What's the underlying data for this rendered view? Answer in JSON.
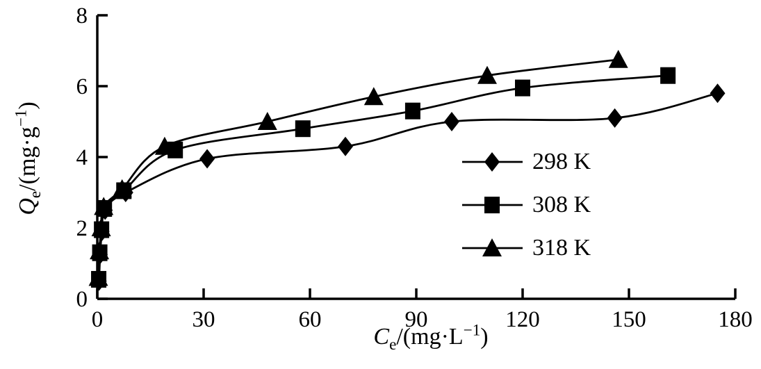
{
  "colors": {
    "foreground": "#000000",
    "background": "#ffffff"
  },
  "chart_data": {
    "type": "line",
    "title": "",
    "grid": false,
    "legend_position": "center-right",
    "xlim": [
      0,
      180
    ],
    "ylim": [
      0,
      8
    ],
    "x_ticks": [
      0,
      30,
      60,
      90,
      120,
      150,
      180
    ],
    "y_ticks": [
      0,
      2,
      4,
      6,
      8
    ],
    "xlabel": {
      "symbol": "C",
      "subscript": "e",
      "unit_prefix": "/(mg·L",
      "superscript": "−1",
      "unit_suffix": ")"
    },
    "ylabel": {
      "symbol": "Q",
      "subscript": "e",
      "unit_prefix": "/(mg·g",
      "superscript": "−1",
      "unit_suffix": ")"
    },
    "series": [
      {
        "name": "298 K",
        "marker": "diamond",
        "color": "#000000",
        "points": [
          [
            0.5,
            0.5
          ],
          [
            0.8,
            1.25
          ],
          [
            1.3,
            1.9
          ],
          [
            2.2,
            2.5
          ],
          [
            8,
            3.0
          ],
          [
            31,
            3.95
          ],
          [
            70,
            4.3
          ],
          [
            100,
            5.0
          ],
          [
            146,
            5.1
          ],
          [
            175,
            5.8
          ]
        ]
      },
      {
        "name": "308 K",
        "marker": "square",
        "color": "#000000",
        "points": [
          [
            0.4,
            0.55
          ],
          [
            0.7,
            1.3
          ],
          [
            1.2,
            1.95
          ],
          [
            2.0,
            2.55
          ],
          [
            7.5,
            3.05
          ],
          [
            22,
            4.2
          ],
          [
            58,
            4.8
          ],
          [
            89,
            5.3
          ],
          [
            120,
            5.95
          ],
          [
            161,
            6.3
          ]
        ]
      },
      {
        "name": "318 K",
        "marker": "triangle",
        "color": "#000000",
        "points": [
          [
            0.3,
            0.6
          ],
          [
            0.6,
            1.35
          ],
          [
            1.1,
            2.0
          ],
          [
            1.8,
            2.6
          ],
          [
            7,
            3.1
          ],
          [
            19,
            4.3
          ],
          [
            48,
            5.0
          ],
          [
            78,
            5.7
          ],
          [
            110,
            6.3
          ],
          [
            147,
            6.75
          ]
        ]
      }
    ]
  }
}
